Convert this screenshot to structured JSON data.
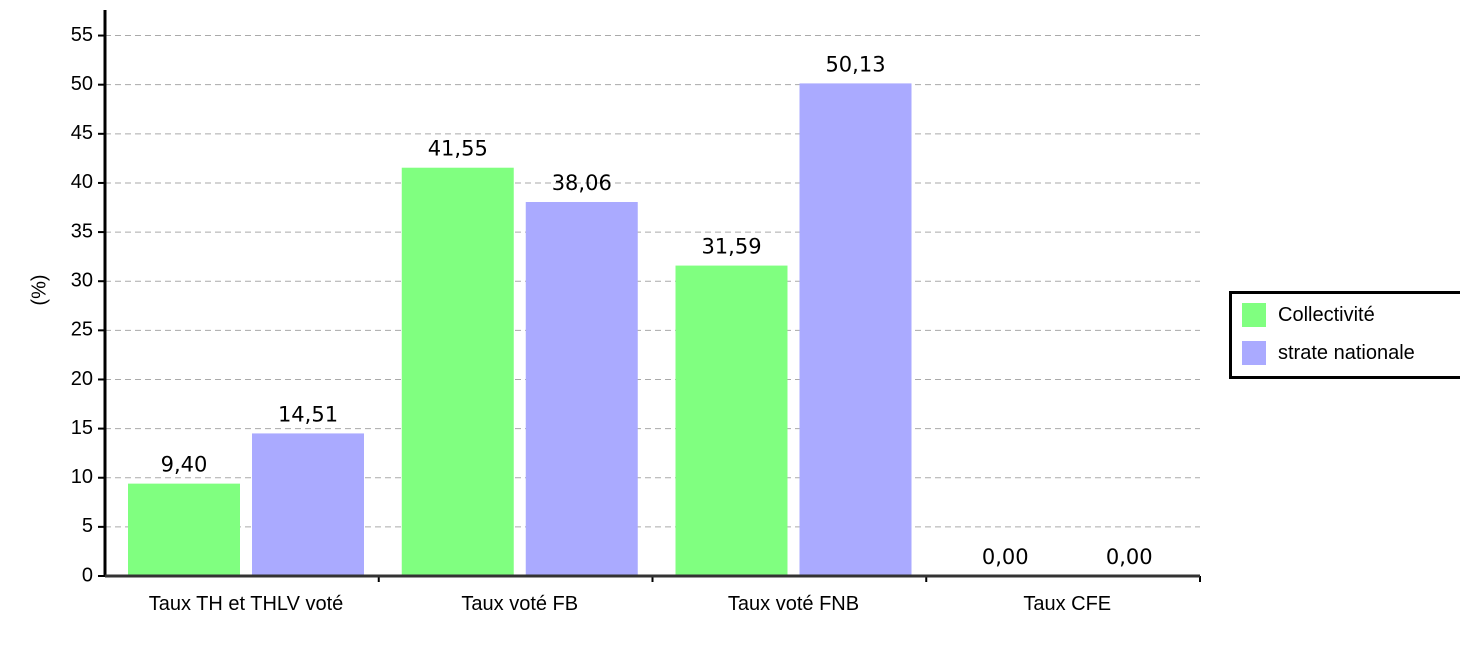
{
  "chart_data": {
    "type": "bar",
    "ylabel": "(%)",
    "categories": [
      "Taux TH et THLV voté",
      "Taux voté FB",
      "Taux voté FNB",
      "Taux CFE"
    ],
    "series": [
      {
        "name": "Collectivité",
        "color": "#80ff80",
        "values": [
          9.4,
          41.55,
          31.59,
          0.0
        ],
        "value_labels": [
          "9,40",
          "41,55",
          "31,59",
          "0,00"
        ]
      },
      {
        "name": "strate nationale",
        "color": "#aaaaff",
        "values": [
          14.51,
          38.06,
          50.13,
          0.0
        ],
        "value_labels": [
          "14,51",
          "38,06",
          "50,13",
          "0,00"
        ]
      }
    ],
    "ylim": [
      0,
      57.6
    ],
    "yticks": [
      0,
      5,
      10,
      15,
      20,
      25,
      30,
      35,
      40,
      45,
      50,
      55
    ],
    "grid": true,
    "legend": "right"
  }
}
